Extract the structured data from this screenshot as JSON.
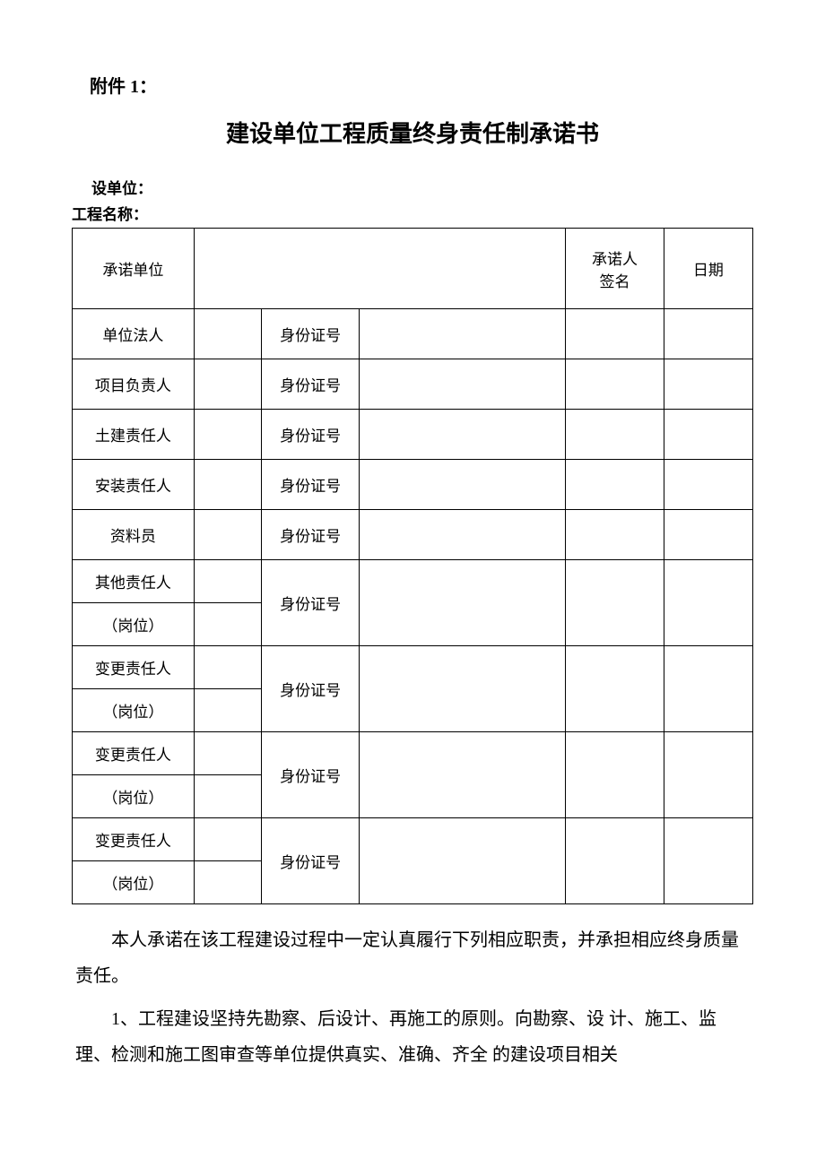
{
  "header": {
    "attachment": "附件 1：",
    "title": "建设单位工程质量终身责任制承诺书",
    "unit_label": "设单位：",
    "project_label": "工程名称："
  },
  "table": {
    "header_row": {
      "col1": "承诺单位",
      "col5_line1": "承诺人",
      "col5_line2": "签名",
      "col6": "日期"
    },
    "id_label": "身份证号",
    "rows": [
      {
        "label": "单位法人"
      },
      {
        "label": "项目负责人"
      },
      {
        "label": "土建责任人"
      },
      {
        "label": "安装责任人"
      },
      {
        "label": "资料员"
      }
    ],
    "double_rows": [
      {
        "label_line1": "其他责任人",
        "label_line2": "（岗位）"
      },
      {
        "label_line1": "变更责任人",
        "label_line2": "（岗位）"
      },
      {
        "label_line1": "变更责任人",
        "label_line2": "（岗位）"
      },
      {
        "label_line1": "变更责任人",
        "label_line2": "（岗位）"
      }
    ]
  },
  "body": {
    "para1": "本人承诺在该工程建设过程中一定认真履行下列相应职责，并承担相应终身质量责任。",
    "para2": "1、工程建设坚持先勘察、后设计、再施工的原则。向勘察、设 计、施工、监理、检测和施工图审查等单位提供真实、准确、齐全 的建设项目相关"
  },
  "style": {
    "background_color": "#ffffff",
    "text_color": "#000000",
    "border_color": "#000000",
    "title_fontsize": 26,
    "body_fontsize": 20,
    "table_fontsize": 17,
    "font_family": "SimSun"
  }
}
